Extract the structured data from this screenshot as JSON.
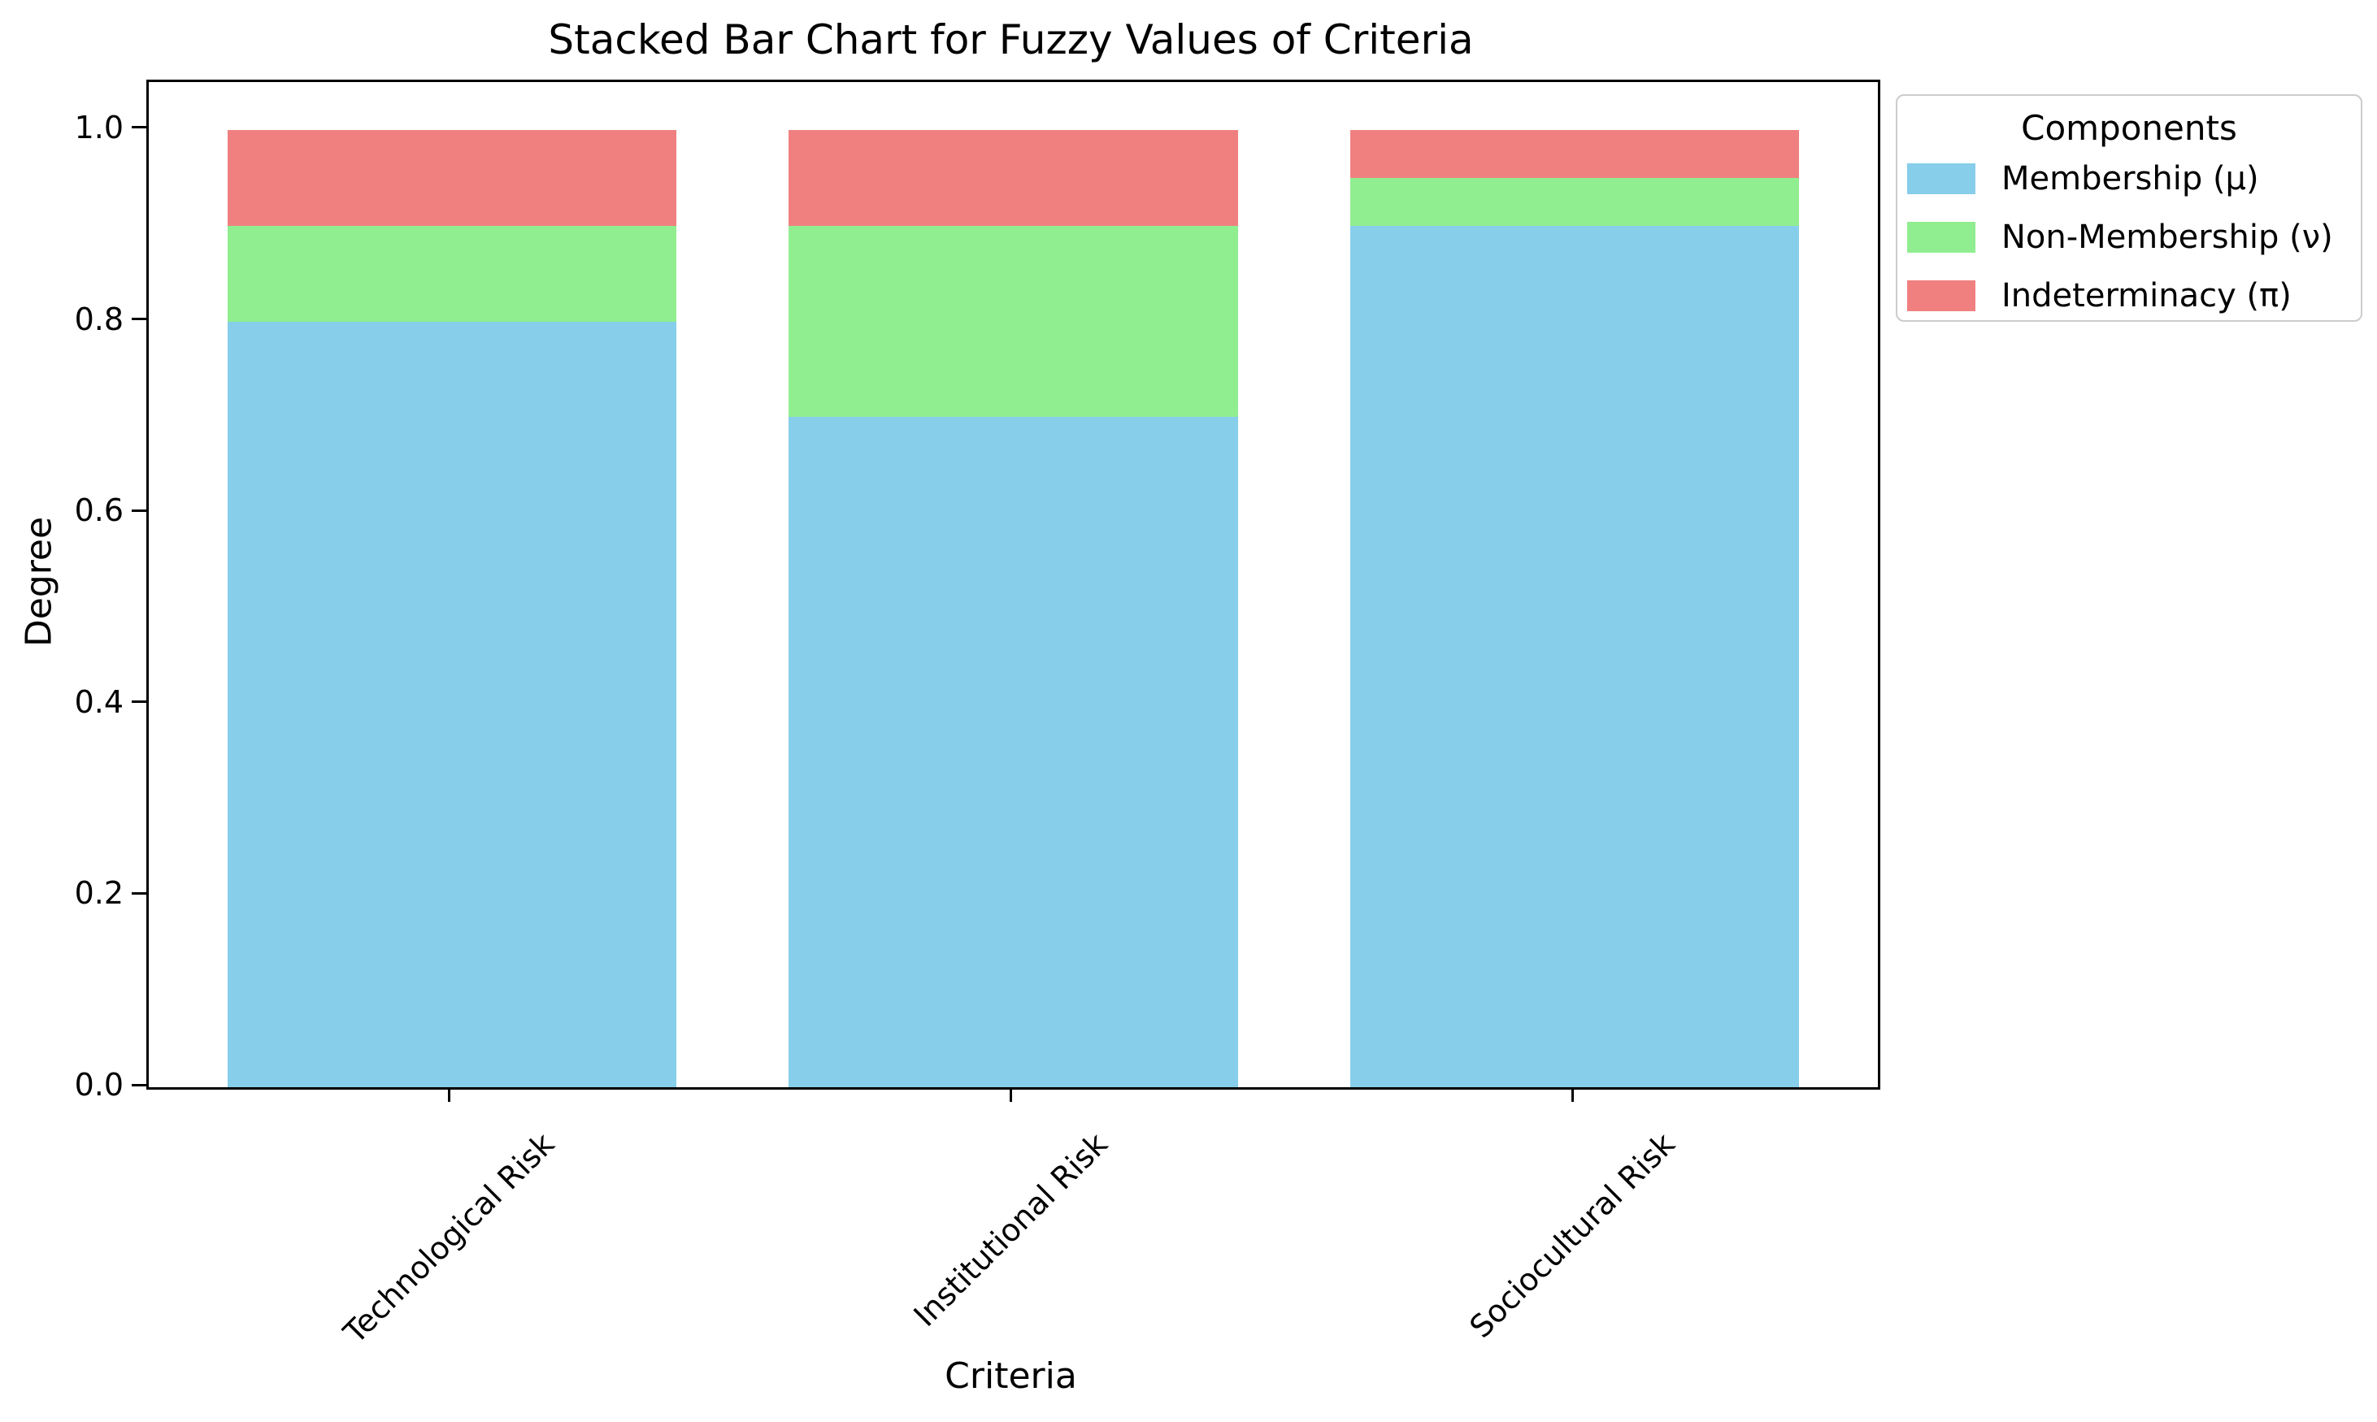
{
  "chart_data": {
    "type": "bar",
    "stacked": true,
    "title": "Stacked Bar Chart for Fuzzy Values of Criteria",
    "xlabel": "Criteria",
    "ylabel": "Degree",
    "ylim": [
      0,
      1.05
    ],
    "xlim": [
      -0.54,
      2.54
    ],
    "yticks": [
      0.0,
      0.2,
      0.4,
      0.6,
      0.8,
      1.0
    ],
    "ytick_labels": [
      "0.0",
      "0.2",
      "0.4",
      "0.6",
      "0.8",
      "1.0"
    ],
    "grid": false,
    "bar_width": 0.8,
    "xtick_rotation_deg": 45,
    "categories": [
      "Technological Risk",
      "Institutional Risk",
      "Sociocultural Risk"
    ],
    "series": [
      {
        "name": "Membership (μ)",
        "color": "#87CEEB",
        "values": [
          0.8,
          0.7,
          0.9
        ]
      },
      {
        "name": "Non-Membership (ν)",
        "color": "#90EE90",
        "values": [
          0.1,
          0.2,
          0.05
        ]
      },
      {
        "name": "Indeterminacy (π)",
        "color": "#F08080",
        "values": [
          0.1,
          0.1,
          0.05
        ]
      }
    ],
    "legend": {
      "title": "Components",
      "position": "upper-right-outside"
    }
  },
  "style_colors": {
    "spine": "#000000",
    "legend_border": "#cccccc",
    "background": "#ffffff"
  }
}
